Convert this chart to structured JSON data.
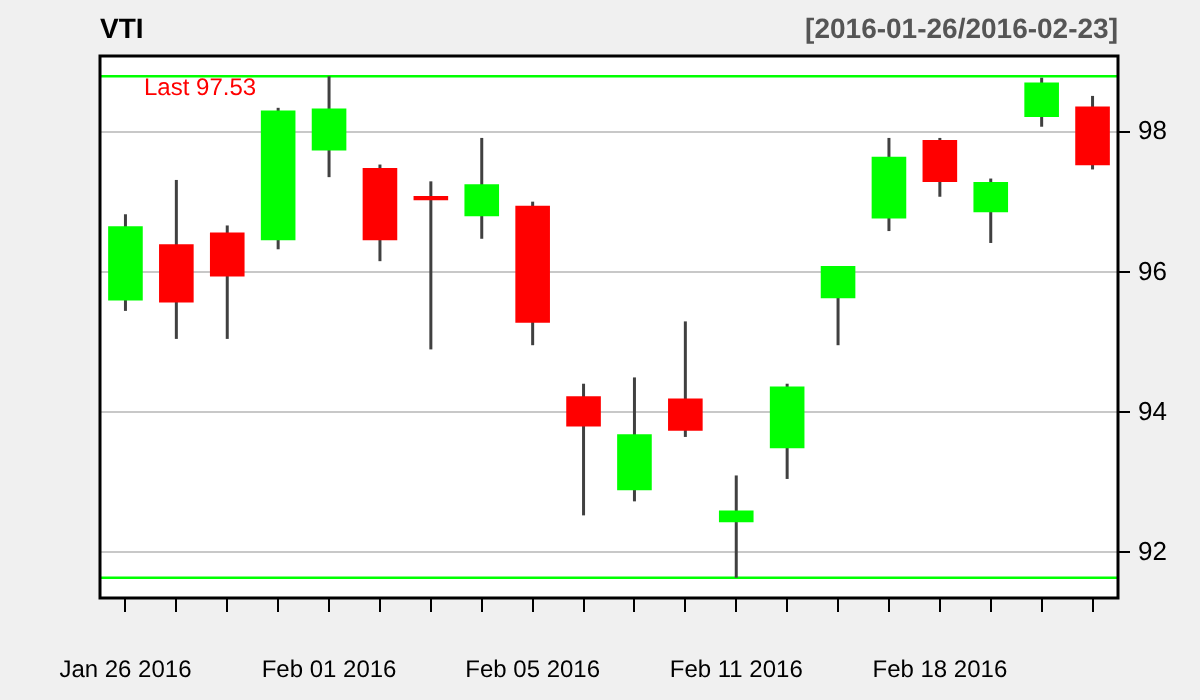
{
  "chart_data": {
    "type": "candlestick",
    "title": "VTI",
    "subtitle": "[2016-01-26/2016-02-23]",
    "categories": [
      "Jan 26 2016",
      null,
      null,
      null,
      "Feb 01 2016",
      null,
      null,
      null,
      "Feb 05 2016",
      null,
      null,
      null,
      "Feb 11 2016",
      null,
      null,
      null,
      "Feb 18 2016",
      null,
      null,
      null
    ],
    "ohlc": [
      [
        95.6,
        96.83,
        95.45,
        96.66
      ],
      [
        96.4,
        97.32,
        95.05,
        95.57
      ],
      [
        96.57,
        96.67,
        95.05,
        95.94
      ],
      [
        96.46,
        98.35,
        96.33,
        98.31
      ],
      [
        97.74,
        98.8,
        97.36,
        98.34
      ],
      [
        97.49,
        97.54,
        96.16,
        96.46
      ],
      [
        97.09,
        97.3,
        94.9,
        97.03
      ],
      [
        96.8,
        97.92,
        96.48,
        97.26
      ],
      [
        96.95,
        97.01,
        94.96,
        95.28
      ],
      [
        94.23,
        94.41,
        92.53,
        93.8
      ],
      [
        92.89,
        94.5,
        92.73,
        93.69
      ],
      [
        94.2,
        95.3,
        93.65,
        93.74
      ],
      [
        92.43,
        93.1,
        91.64,
        92.6
      ],
      [
        93.49,
        94.41,
        93.05,
        94.37
      ],
      [
        95.63,
        96.09,
        94.96,
        96.09
      ],
      [
        96.77,
        97.92,
        96.59,
        97.65
      ],
      [
        97.89,
        97.92,
        97.08,
        97.29
      ],
      [
        96.86,
        97.34,
        96.42,
        97.29
      ],
      [
        98.22,
        98.78,
        98.08,
        98.71
      ],
      [
        98.37,
        98.52,
        97.47,
        97.53
      ]
    ],
    "colors": [
      "#00ff00",
      "#ff0000",
      "#ff0000",
      "#00ff00",
      "#00ff00",
      "#ff0000",
      "#ff0000",
      "#00ff00",
      "#ff0000",
      "#ff0000",
      "#00ff00",
      "#ff0000",
      "#00ff00",
      "#00ff00",
      "#00ff00",
      "#00ff00",
      "#ff0000",
      "#00ff00",
      "#00ff00",
      "#ff0000"
    ],
    "ylim": [
      91.35,
      99.09
    ],
    "yticks": [
      92,
      94,
      96,
      98
    ],
    "grid": "y",
    "ref_lines": [
      {
        "axis": "y",
        "value": 98.8,
        "color": "#00ff00"
      },
      {
        "axis": "y",
        "value": 91.64,
        "color": "#00ff00"
      }
    ],
    "annotations": [
      "Last 97.53"
    ]
  }
}
